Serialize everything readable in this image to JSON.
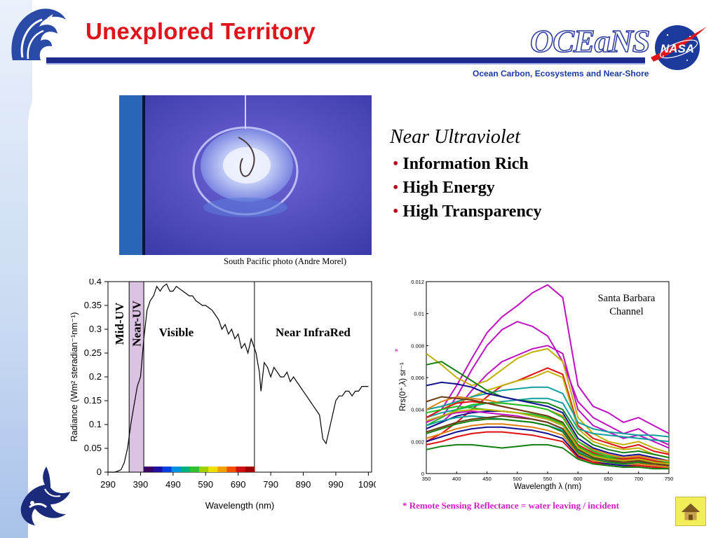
{
  "slide": {
    "title": "Unexplored Territory",
    "logo_text": "OCEaNS",
    "tagline": "Ocean Carbon, Ecosystems and Near-Shore",
    "nasa_text": "NASA"
  },
  "photo": {
    "caption": "South Pacific photo (Andre Morel)"
  },
  "near_uv": {
    "heading": "Near Ultraviolet",
    "bullets": [
      "Information Rich",
      "High Energy",
      "High Transparency"
    ]
  },
  "footnote": "* Remote Sensing Reflectance = water leaving / incident",
  "colors": {
    "title": "#e0141b",
    "header_bar": "#1c2a8c",
    "footnote": "#d01ec0",
    "near_uv_band": "#dcc2e2"
  },
  "chart_data": [
    {
      "type": "line",
      "xlabel": "Wavelength (nm)",
      "ylabel": "Radiance (Wm² steradian⁻¹nm⁻¹)",
      "xlim": [
        290,
        1100
      ],
      "ylim": [
        0,
        0.4
      ],
      "x_ticks": [
        290,
        390,
        490,
        590,
        690,
        790,
        890,
        990,
        1090
      ],
      "y_ticks": [
        0,
        0.05,
        0.1,
        0.15,
        0.2,
        0.25,
        0.3,
        0.35,
        0.4
      ],
      "y_tick_labels": [
        "0",
        "0.05",
        "0.1",
        "0.15",
        "0.2",
        "0.25",
        "0.3",
        "0.35",
        "0.4"
      ],
      "regions": [
        {
          "label": "Mid-UV",
          "from": 290,
          "to": 355
        },
        {
          "label": "Near-UV",
          "from": 355,
          "to": 400
        },
        {
          "label": "Visible",
          "from": 400,
          "to": 740
        },
        {
          "label": "Near InfraRed",
          "from": 740,
          "to": 1100
        }
      ],
      "series": [
        {
          "x": [
            290,
            300,
            310,
            320,
            330,
            340,
            350,
            360,
            370,
            380,
            390,
            400,
            410,
            420,
            430,
            440,
            450,
            460,
            470,
            480,
            490,
            500,
            510,
            520,
            530,
            540,
            550,
            560,
            570,
            580,
            590,
            600,
            610,
            620,
            630,
            640,
            650,
            660,
            670,
            680,
            690,
            700,
            710,
            720,
            730,
            740,
            745,
            750,
            755,
            760,
            765,
            770,
            780,
            790,
            800,
            810,
            820,
            830,
            840,
            850,
            860,
            870,
            880,
            890,
            900,
            910,
            920,
            930,
            940,
            950,
            960,
            970,
            980,
            990,
            1000,
            1010,
            1020,
            1030,
            1040,
            1050,
            1060,
            1070,
            1080,
            1090
          ],
          "y": [
            0,
            0,
            0,
            0.002,
            0.005,
            0.02,
            0.05,
            0.1,
            0.14,
            0.18,
            0.2,
            0.28,
            0.34,
            0.36,
            0.37,
            0.39,
            0.38,
            0.39,
            0.395,
            0.38,
            0.38,
            0.39,
            0.385,
            0.38,
            0.375,
            0.37,
            0.37,
            0.36,
            0.355,
            0.35,
            0.35,
            0.345,
            0.34,
            0.33,
            0.32,
            0.3,
            0.31,
            0.29,
            0.3,
            0.28,
            0.29,
            0.26,
            0.27,
            0.25,
            0.28,
            0.26,
            0.25,
            0.23,
            0.21,
            0.17,
            0.2,
            0.23,
            0.22,
            0.2,
            0.22,
            0.21,
            0.2,
            0.2,
            0.21,
            0.19,
            0.2,
            0.19,
            0.18,
            0.17,
            0.16,
            0.15,
            0.14,
            0.13,
            0.12,
            0.07,
            0.06,
            0.09,
            0.12,
            0.15,
            0.16,
            0.16,
            0.17,
            0.17,
            0.16,
            0.17,
            0.17,
            0.18,
            0.18,
            0.18
          ]
        }
      ]
    },
    {
      "type": "line",
      "annotation": "Santa Barbara\nChannel",
      "xlabel": "Wavelength λ (nm)",
      "ylabel": "Rrs(0⁺,λ) sr⁻¹",
      "ylabel_star": "*",
      "xlim": [
        350,
        750
      ],
      "ylim": [
        0,
        0.012
      ],
      "x_ticks": [
        350,
        400,
        450,
        500,
        550,
        600,
        650,
        700,
        750
      ],
      "y_ticks": [
        0,
        0.002,
        0.004,
        0.006,
        0.008,
        0.01,
        0.012
      ],
      "y_tick_labels": [
        "0",
        "0.002",
        "0.004",
        "0.006",
        "0.008",
        "0.01",
        "0.012"
      ],
      "x": [
        350,
        375,
        400,
        425,
        450,
        475,
        500,
        525,
        550,
        575,
        600,
        625,
        650,
        675,
        700,
        725,
        750
      ],
      "series": [
        {
          "color": "#c010c0",
          "values": [
            0.0035,
            0.004,
            0.0055,
            0.0072,
            0.0088,
            0.0098,
            0.0105,
            0.0113,
            0.0118,
            0.011,
            0.0055,
            0.0042,
            0.0038,
            0.0032,
            0.0035,
            0.003,
            0.0025
          ]
        },
        {
          "color": "#c010c0",
          "values": [
            0.003,
            0.0035,
            0.0048,
            0.0065,
            0.008,
            0.009,
            0.0095,
            0.0092,
            0.0086,
            0.007,
            0.0045,
            0.0035,
            0.003,
            0.0025,
            0.0028,
            0.0022,
            0.0018
          ]
        },
        {
          "color": "#c010c0",
          "values": [
            0.0028,
            0.0032,
            0.004,
            0.0052,
            0.0062,
            0.007,
            0.0074,
            0.0078,
            0.008,
            0.0075,
            0.004,
            0.003,
            0.0026,
            0.0022,
            0.0024,
            0.002,
            0.0016
          ]
        },
        {
          "color": "#c0b000",
          "values": [
            0.0075,
            0.0068,
            0.006,
            0.0055,
            0.0058,
            0.0065,
            0.0072,
            0.0076,
            0.0078,
            0.007,
            0.0035,
            0.0025,
            0.002,
            0.0018,
            0.002,
            0.0016,
            0.0013
          ]
        },
        {
          "color": "#e01010",
          "values": [
            0.002,
            0.0025,
            0.0032,
            0.004,
            0.0048,
            0.0055,
            0.0058,
            0.0062,
            0.0066,
            0.0062,
            0.003,
            0.0022,
            0.0019,
            0.0016,
            0.0018,
            0.0014,
            0.0012
          ]
        },
        {
          "color": "#c0b000",
          "values": [
            0.004,
            0.0042,
            0.0044,
            0.0048,
            0.0052,
            0.0055,
            0.0058,
            0.006,
            0.0064,
            0.006,
            0.0028,
            0.002,
            0.0017,
            0.0015,
            0.0016,
            0.0012,
            0.001
          ]
        },
        {
          "color": "#10a0a0",
          "values": [
            0.004,
            0.0042,
            0.0045,
            0.0048,
            0.005,
            0.0052,
            0.0053,
            0.0054,
            0.0054,
            0.005,
            0.0032,
            0.0028,
            0.0026,
            0.0025,
            0.0024,
            0.0024,
            0.0023
          ]
        },
        {
          "color": "#10a0a0",
          "values": [
            0.0035,
            0.0038,
            0.004,
            0.0042,
            0.0044,
            0.0045,
            0.0046,
            0.0047,
            0.0047,
            0.0044,
            0.0028,
            0.0025,
            0.0024,
            0.0023,
            0.0022,
            0.0021,
            0.002
          ]
        },
        {
          "color": "#108010",
          "values": [
            0.0068,
            0.007,
            0.0064,
            0.0058,
            0.0052,
            0.0048,
            0.0046,
            0.0045,
            0.0044,
            0.004,
            0.0025,
            0.0018,
            0.0015,
            0.0013,
            0.0014,
            0.0012,
            0.001
          ]
        },
        {
          "color": "#101090",
          "values": [
            0.0055,
            0.0057,
            0.0056,
            0.0054,
            0.005,
            0.0048,
            0.0046,
            0.0044,
            0.0042,
            0.0038,
            0.0022,
            0.0016,
            0.0013,
            0.0011,
            0.0012,
            0.001,
            0.0008
          ]
        },
        {
          "color": "#e08010",
          "values": [
            0.004,
            0.0045,
            0.0048,
            0.0047,
            0.0046,
            0.0044,
            0.0043,
            0.0042,
            0.004,
            0.0036,
            0.002,
            0.0015,
            0.0012,
            0.001,
            0.0011,
            0.0009,
            0.0008
          ]
        },
        {
          "color": "#20c020",
          "values": [
            0.003,
            0.0035,
            0.004,
            0.0043,
            0.0044,
            0.0044,
            0.0043,
            0.0042,
            0.004,
            0.0035,
            0.002,
            0.0014,
            0.0011,
            0.0009,
            0.001,
            0.0008,
            0.0007
          ]
        },
        {
          "color": "#e01010",
          "values": [
            0.0035,
            0.004,
            0.0044,
            0.0045,
            0.0044,
            0.0042,
            0.004,
            0.0038,
            0.0036,
            0.0032,
            0.0018,
            0.0013,
            0.001,
            0.0009,
            0.001,
            0.0008,
            0.0006
          ]
        },
        {
          "color": "#6a3a10",
          "values": [
            0.0045,
            0.0048,
            0.0047,
            0.0046,
            0.0044,
            0.0042,
            0.004,
            0.0038,
            0.0036,
            0.0032,
            0.0017,
            0.0012,
            0.001,
            0.0008,
            0.0009,
            0.0007,
            0.0006
          ]
        },
        {
          "color": "#101090",
          "values": [
            0.0028,
            0.0032,
            0.0036,
            0.0038,
            0.0039,
            0.0039,
            0.0038,
            0.0036,
            0.0034,
            0.003,
            0.0016,
            0.0011,
            0.0009,
            0.0007,
            0.0008,
            0.0007,
            0.0005
          ]
        },
        {
          "color": "#c010c0",
          "values": [
            0.0032,
            0.0036,
            0.0038,
            0.0039,
            0.0038,
            0.0037,
            0.0036,
            0.0034,
            0.0032,
            0.0028,
            0.0015,
            0.001,
            0.0008,
            0.0007,
            0.0008,
            0.0006,
            0.0005
          ]
        },
        {
          "color": "#10a0a0",
          "values": [
            0.003,
            0.0033,
            0.0035,
            0.0036,
            0.0035,
            0.0034,
            0.0033,
            0.0032,
            0.003,
            0.0027,
            0.0014,
            0.001,
            0.0008,
            0.0006,
            0.0007,
            0.0006,
            0.0005
          ]
        },
        {
          "color": "#108010",
          "values": [
            0.0025,
            0.0028,
            0.0031,
            0.0033,
            0.0034,
            0.0034,
            0.0033,
            0.0032,
            0.003,
            0.0026,
            0.0013,
            0.0009,
            0.0007,
            0.0006,
            0.0007,
            0.0005,
            0.0004
          ]
        },
        {
          "color": "#e08010",
          "values": [
            0.0022,
            0.0025,
            0.0028,
            0.003,
            0.0031,
            0.0031,
            0.003,
            0.0029,
            0.0027,
            0.0024,
            0.0012,
            0.0008,
            0.0006,
            0.0005,
            0.0006,
            0.0005,
            0.0004
          ]
        },
        {
          "color": "#101090",
          "values": [
            0.002,
            0.0023,
            0.0026,
            0.0028,
            0.0029,
            0.0029,
            0.0028,
            0.0027,
            0.0025,
            0.0022,
            0.0011,
            0.0007,
            0.0006,
            0.0005,
            0.0005,
            0.0004,
            0.0003
          ]
        },
        {
          "color": "#e01010",
          "values": [
            0.0018,
            0.002,
            0.0023,
            0.0025,
            0.0026,
            0.0026,
            0.0025,
            0.0024,
            0.0022,
            0.002,
            0.001,
            0.0007,
            0.0005,
            0.0004,
            0.0005,
            0.0004,
            0.0003
          ]
        },
        {
          "color": "#108010",
          "values": [
            0.0015,
            0.0017,
            0.0018,
            0.0018,
            0.0017,
            0.0016,
            0.0017,
            0.0018,
            0.0018,
            0.0016,
            0.0009,
            0.0006,
            0.0005,
            0.0004,
            0.0004,
            0.0003,
            0.0003
          ]
        },
        {
          "color": "#20c020",
          "values": [
            0.0038,
            0.004,
            0.0042,
            0.0041,
            0.004,
            0.0039,
            0.0038,
            0.0037,
            0.0035,
            0.0031,
            0.0017,
            0.0012,
            0.001,
            0.0008,
            0.0009,
            0.0007,
            0.0006
          ]
        },
        {
          "color": "#6a3a10",
          "values": [
            0.0026,
            0.0029,
            0.0032,
            0.0034,
            0.0035,
            0.0036,
            0.0035,
            0.0034,
            0.0032,
            0.0028,
            0.0015,
            0.001,
            0.0008,
            0.0007,
            0.0008,
            0.0006,
            0.0005
          ]
        },
        {
          "color": "#c0b000",
          "values": [
            0.0033,
            0.0036,
            0.0039,
            0.004,
            0.004,
            0.0039,
            0.0038,
            0.0036,
            0.0034,
            0.003,
            0.0016,
            0.0011,
            0.0009,
            0.0008,
            0.0009,
            0.0007,
            0.0006
          ]
        }
      ]
    }
  ]
}
